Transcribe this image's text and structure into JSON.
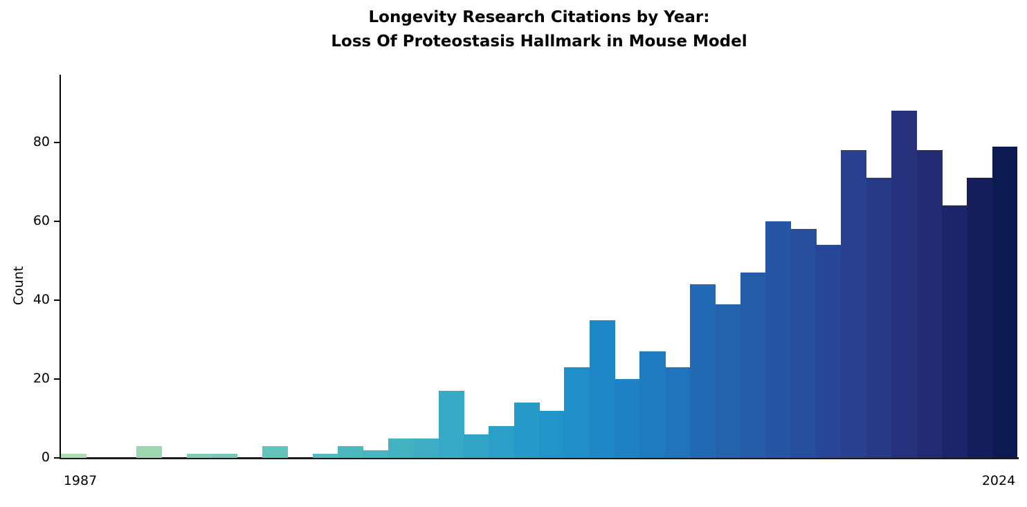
{
  "chart_data": {
    "type": "bar",
    "title_lines": [
      "Longevity Research Citations by Year:",
      "Loss Of Proteostasis Hallmark in Mouse Model"
    ],
    "ylabel": "Count",
    "xlabel": "",
    "categories": [
      1987,
      1988,
      1989,
      1990,
      1991,
      1992,
      1993,
      1994,
      1995,
      1996,
      1997,
      1998,
      1999,
      2000,
      2001,
      2002,
      2003,
      2004,
      2005,
      2006,
      2007,
      2008,
      2009,
      2010,
      2011,
      2012,
      2013,
      2014,
      2015,
      2016,
      2017,
      2018,
      2019,
      2020,
      2021,
      2022,
      2023,
      2024
    ],
    "values": [
      1,
      0,
      0,
      3,
      0,
      1,
      1,
      0,
      3,
      0,
      1,
      3,
      2,
      5,
      5,
      17,
      6,
      8,
      14,
      12,
      23,
      35,
      20,
      27,
      23,
      44,
      39,
      47,
      60,
      58,
      54,
      78,
      71,
      88,
      78,
      64,
      71,
      79
    ],
    "bar_colors": [
      "#aedcb0",
      "#a8daaf",
      "#a2d8ae",
      "#9cd7ae",
      "#8bd1b1",
      "#80cdb4",
      "#76cab6",
      "#6cc7b8",
      "#63c3ba",
      "#5bbfbc",
      "#53bcbe",
      "#4cb9c0",
      "#47b6c1",
      "#43b3c2",
      "#3daec4",
      "#38aac6",
      "#32a5c7",
      "#2c9fc8",
      "#279ac9",
      "#2394c9",
      "#208ec8",
      "#1e88c6",
      "#1e82c4",
      "#1f7bc0",
      "#2173bb",
      "#226bb4",
      "#2363ae",
      "#245ca8",
      "#2555a3",
      "#264e9d",
      "#274796",
      "#28408e",
      "#273a86",
      "#26327c",
      "#232b72",
      "#1d2568",
      "#161f5c",
      "#0d1a52"
    ],
    "yticks": [
      0,
      20,
      40,
      60,
      80
    ],
    "ylim": [
      0,
      96.8
    ],
    "xtick_labels_shown": [
      "1987",
      "2024"
    ],
    "grid": false,
    "legend": null,
    "background_color": "#ffffff",
    "axis_color": "#000000"
  }
}
